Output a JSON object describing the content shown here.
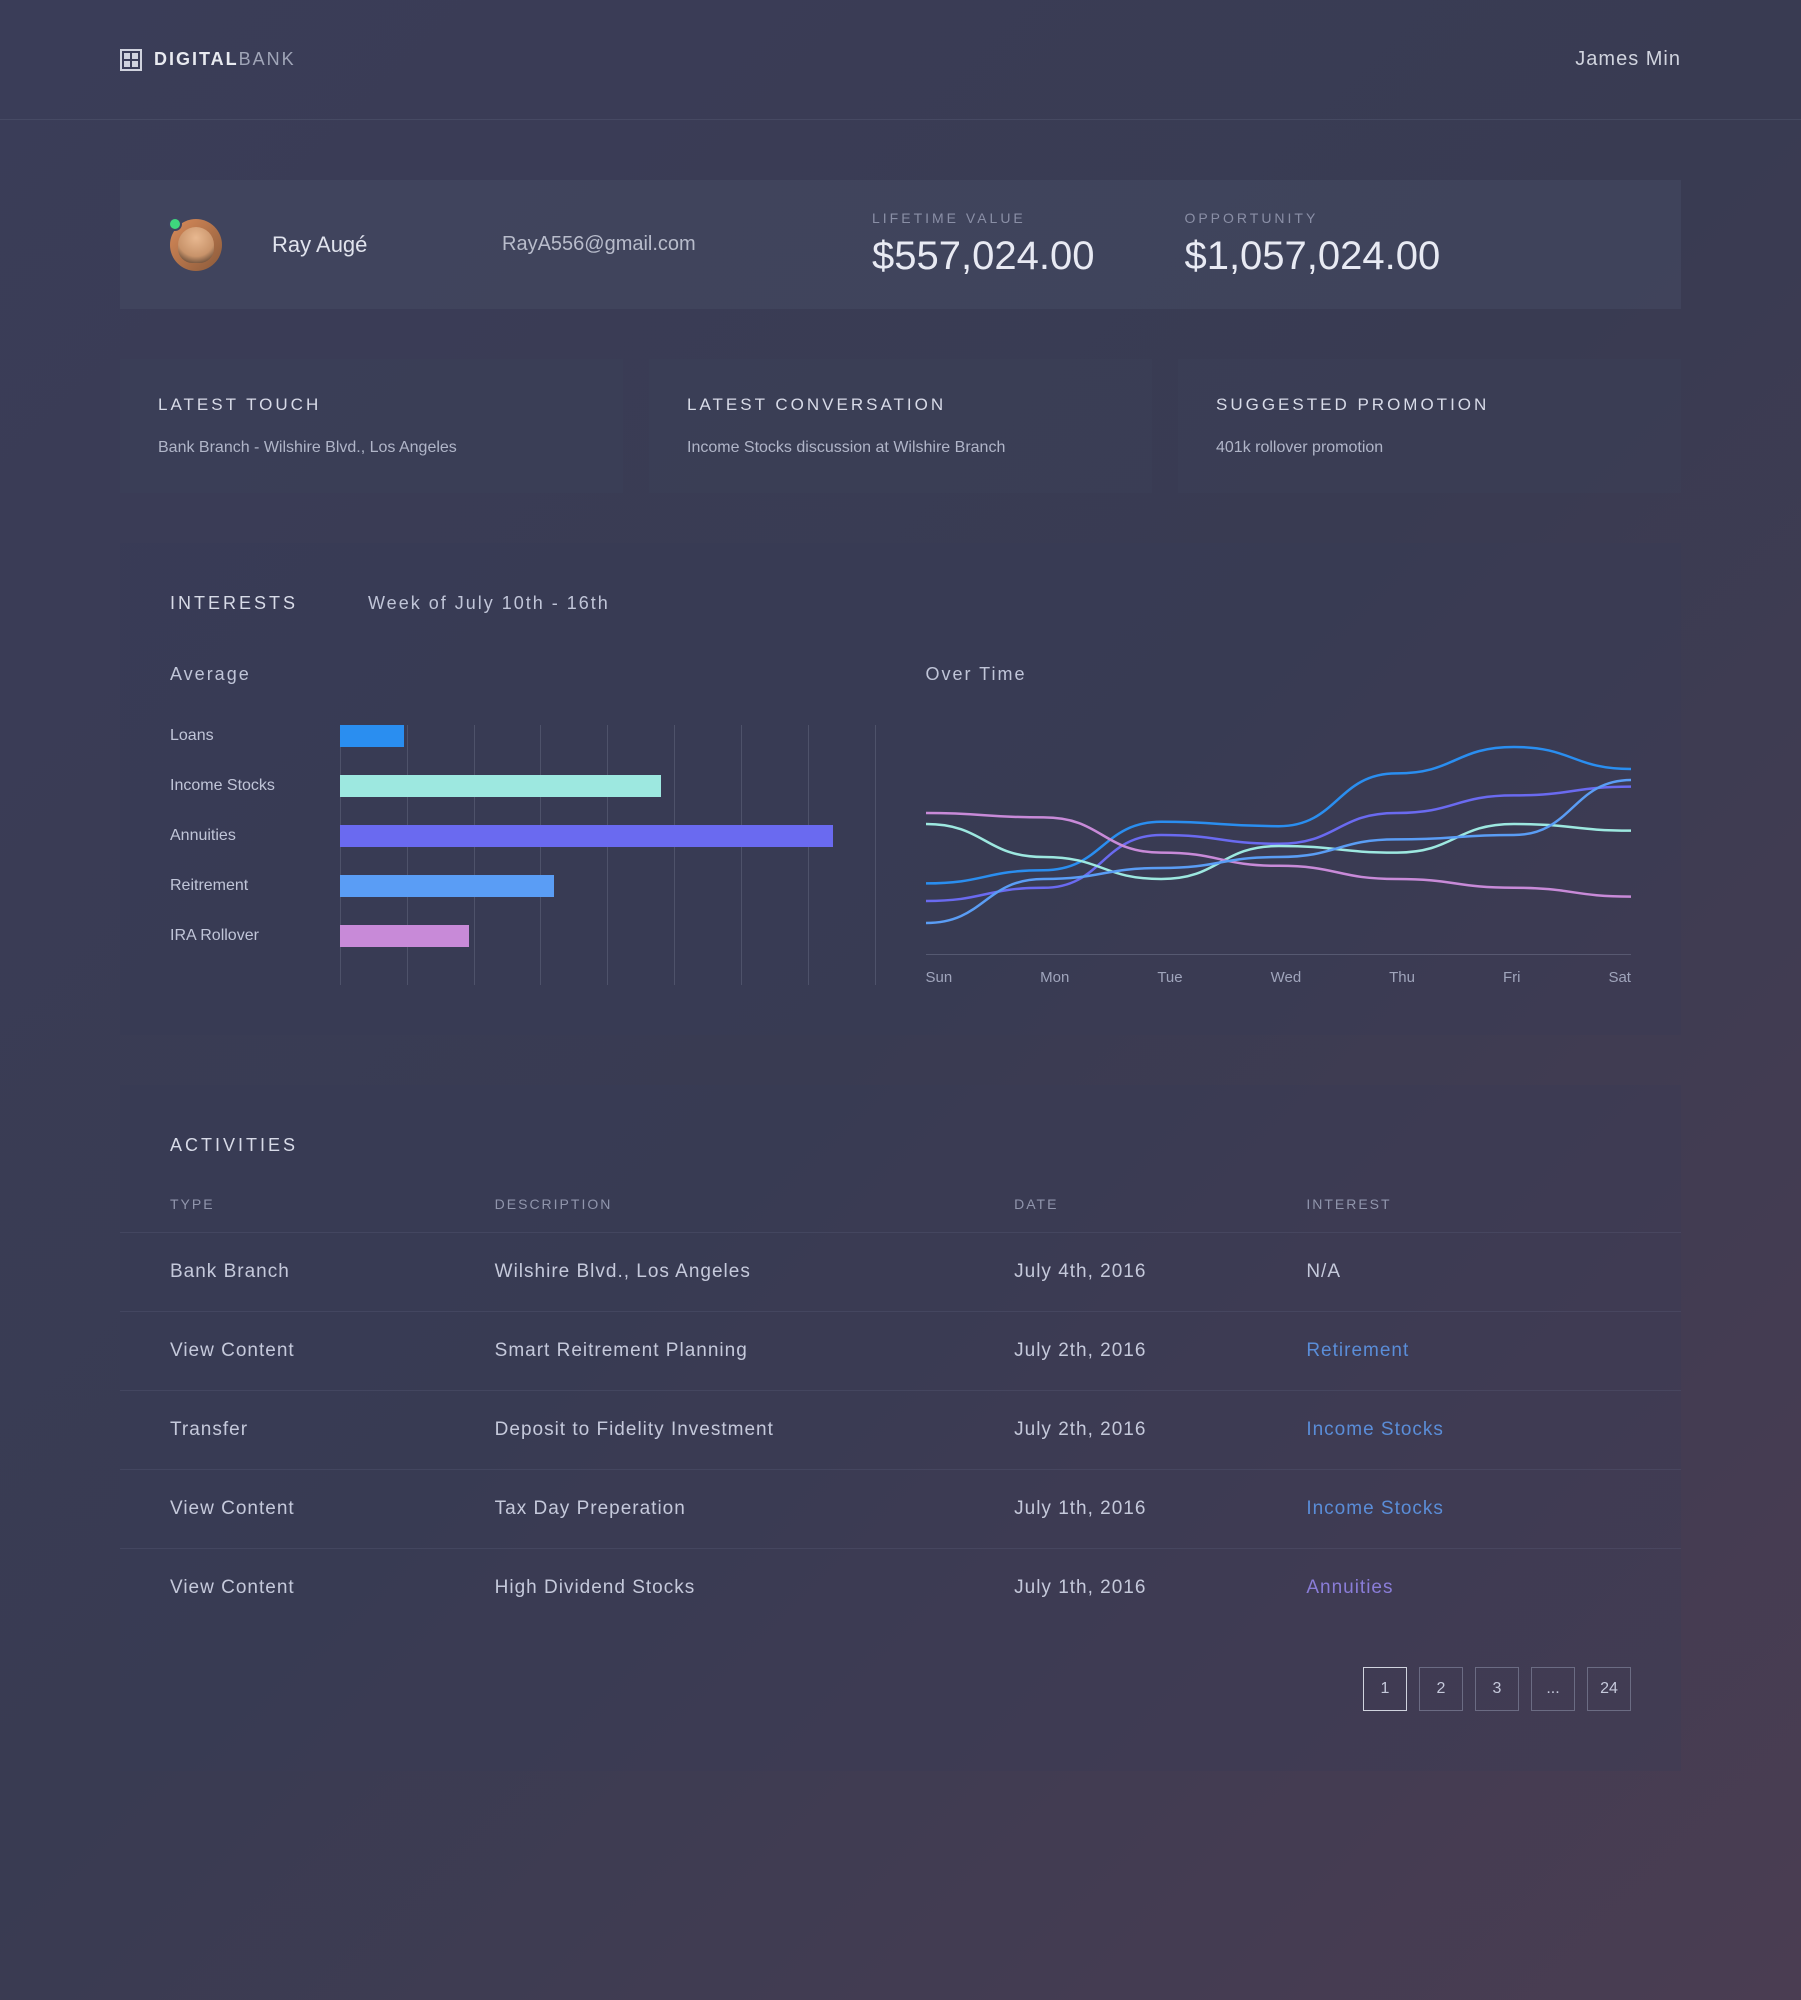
{
  "header": {
    "logo_bold": "DIGITAL",
    "logo_light": "BANK",
    "username": "James Min"
  },
  "profile": {
    "name": "Ray Augé",
    "email": "RayA556@gmail.com",
    "lifetime_label": "LIFETIME VALUE",
    "lifetime_value": "$557,024.00",
    "opportunity_label": "OPPORTUNITY",
    "opportunity_value": "$1,057,024.00"
  },
  "info_cards": [
    {
      "title": "LATEST TOUCH",
      "body": "Bank Branch  -  Wilshire Blvd., Los Angeles"
    },
    {
      "title": "LATEST CONVERSATION",
      "body": "Income Stocks discussion at Wilshire Branch"
    },
    {
      "title": "SUGGESTED PROMOTION",
      "body": "401k rollover promotion"
    }
  ],
  "interests": {
    "title": "INTERESTS",
    "range": "Week of July 10th - 16th",
    "average_title": "Average",
    "overtime_title": "Over Time",
    "bar_chart": {
      "type": "bar",
      "grid_lines": 9,
      "grid_color": "rgba(130,135,160,0.3)",
      "items": [
        {
          "label": "Loans",
          "value": 12,
          "color": "#2a8ef0"
        },
        {
          "label": "Income Stocks",
          "value": 60,
          "color": "#9de8e0"
        },
        {
          "label": "Annuities",
          "value": 92,
          "color": "#6a6af0"
        },
        {
          "label": "Reitrement",
          "value": 40,
          "color": "#5a9df5"
        },
        {
          "label": "IRA Rollover",
          "value": 24,
          "color": "#c88ad8"
        }
      ]
    },
    "line_chart": {
      "type": "line",
      "days": [
        "Sun",
        "Mon",
        "Tue",
        "Wed",
        "Thu",
        "Fri",
        "Sat"
      ],
      "xlim": [
        0,
        6
      ],
      "ylim": [
        0,
        100
      ],
      "line_width": 2.5,
      "series": [
        {
          "color": "#2a8ef0",
          "points": [
            28,
            34,
            56,
            54,
            78,
            90,
            80
          ]
        },
        {
          "color": "#6a6af0",
          "points": [
            20,
            26,
            50,
            46,
            60,
            68,
            72
          ]
        },
        {
          "color": "#9de8e0",
          "points": [
            55,
            40,
            30,
            45,
            42,
            55,
            52
          ]
        },
        {
          "color": "#c88ad8",
          "points": [
            60,
            58,
            42,
            36,
            30,
            26,
            22
          ]
        },
        {
          "color": "#5a9df5",
          "points": [
            10,
            30,
            35,
            40,
            48,
            50,
            75
          ]
        }
      ]
    }
  },
  "activities": {
    "title": "ACTIVITIES",
    "columns": [
      "TYPE",
      "DESCRIPTION",
      "DATE",
      "INTEREST"
    ],
    "rows": [
      {
        "type": "Bank Branch",
        "description": "Wilshire Blvd., Los Angeles",
        "date": "July 4th, 2016",
        "interest": "N/A",
        "link": false,
        "link_color": ""
      },
      {
        "type": "View Content",
        "description": "Smart Reitrement Planning",
        "date": "July 2th, 2016",
        "interest": "Retirement",
        "link": true,
        "link_color": "#5a8dd8"
      },
      {
        "type": "Transfer",
        "description": "Deposit to Fidelity Investment",
        "date": "July 2th, 2016",
        "interest": "Income Stocks",
        "link": true,
        "link_color": "#5a8dd8"
      },
      {
        "type": "View Content",
        "description": "Tax Day Preperation",
        "date": "July 1th, 2016",
        "interest": "Income Stocks",
        "link": true,
        "link_color": "#5a8dd8"
      },
      {
        "type": "View Content",
        "description": "High Dividend Stocks",
        "date": "July 1th, 2016",
        "interest": "Annuities",
        "link": true,
        "link_color": "#8a7dd8"
      }
    ],
    "pagination": [
      "1",
      "2",
      "3",
      "...",
      "24"
    ],
    "active_page": "1"
  }
}
